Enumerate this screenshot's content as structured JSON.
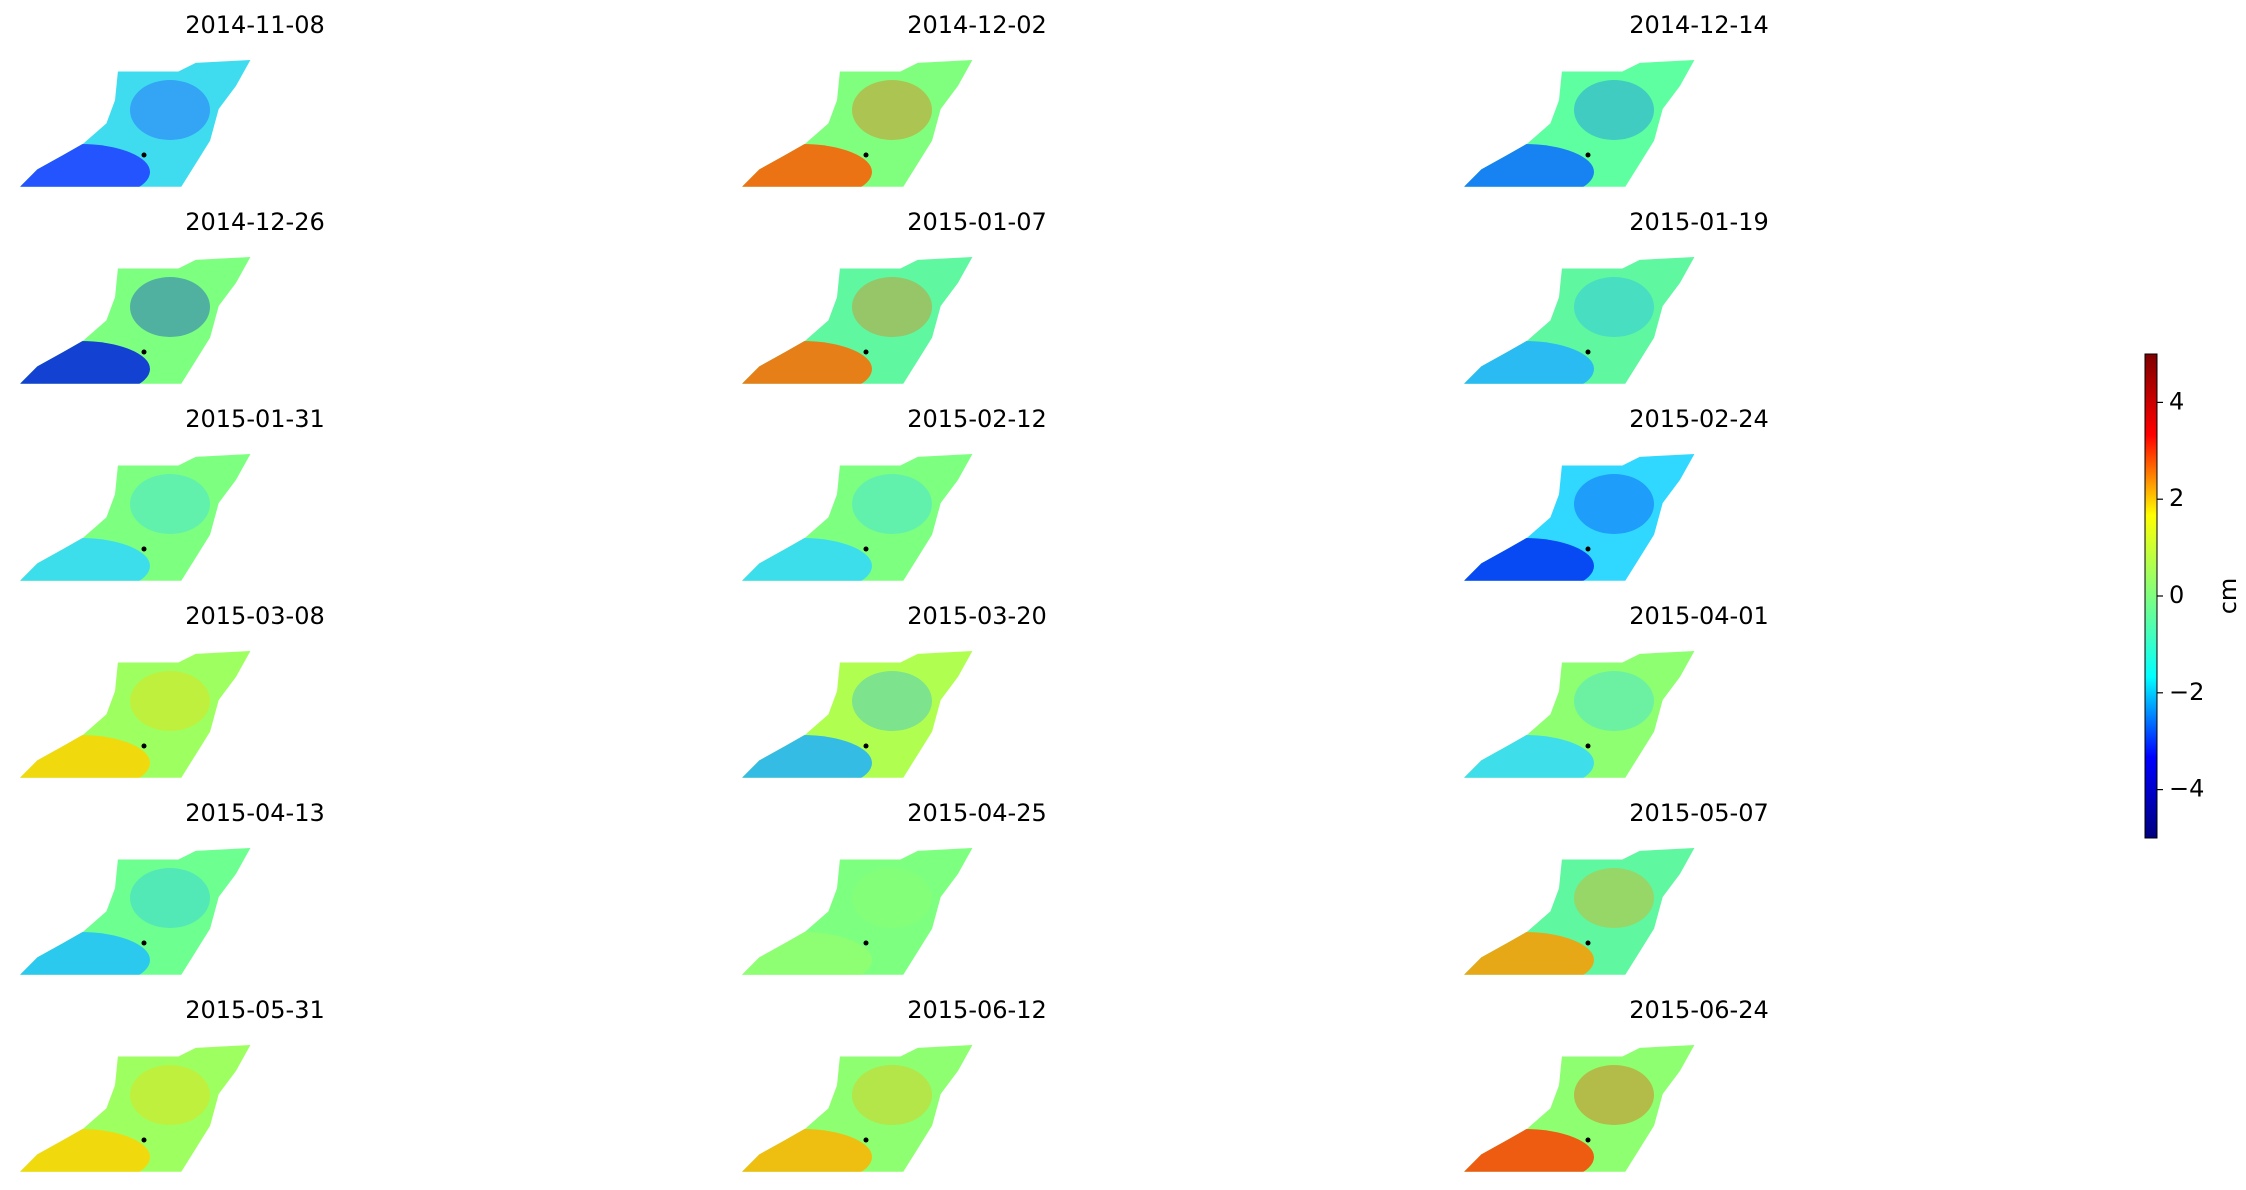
{
  "chart_data": {
    "type": "image-grid",
    "panels": [
      {
        "title": "2014-11-08",
        "colors": [
          "#3fdcf0",
          "#1f3cff"
        ]
      },
      {
        "title": "2014-12-02",
        "colors": [
          "#80ff7f",
          "#ff5a00"
        ]
      },
      {
        "title": "2014-12-14",
        "colors": [
          "#5effa0",
          "#0a6cff"
        ]
      },
      {
        "title": "2014-12-26",
        "colors": [
          "#7dff80",
          "#0020e0"
        ]
      },
      {
        "title": "2015-01-07",
        "colors": [
          "#5ff7a0",
          "#ff6a00"
        ]
      },
      {
        "title": "2015-01-19",
        "colors": [
          "#5ff7a0",
          "#20b0ff"
        ]
      },
      {
        "title": "2015-01-31",
        "colors": [
          "#7dff80",
          "#30d8ff"
        ]
      },
      {
        "title": "2015-02-12",
        "colors": [
          "#7dff80",
          "#30d8ff"
        ]
      },
      {
        "title": "2015-02-24",
        "colors": [
          "#30d8ff",
          "#0030f0"
        ]
      },
      {
        "title": "2015-03-08",
        "colors": [
          "#9dff60",
          "#ffd400"
        ]
      },
      {
        "title": "2015-03-20",
        "colors": [
          "#b0ff50",
          "#20b0ff"
        ]
      },
      {
        "title": "2015-04-01",
        "colors": [
          "#8dff70",
          "#30d8ff"
        ]
      },
      {
        "title": "2015-04-13",
        "colors": [
          "#6dff90",
          "#20c0ff"
        ]
      },
      {
        "title": "2015-04-25",
        "colors": [
          "#7dff80",
          "#90ff70"
        ]
      },
      {
        "title": "2015-05-07",
        "colors": [
          "#5ff7a0",
          "#ff9a00"
        ]
      },
      {
        "title": "2015-05-31",
        "colors": [
          "#9dff60",
          "#ffd400"
        ]
      },
      {
        "title": "2015-06-12",
        "colors": [
          "#8dff70",
          "#ffb400"
        ]
      },
      {
        "title": "2015-06-24",
        "colors": [
          "#8dff70",
          "#ff4000"
        ]
      }
    ],
    "colorbar": {
      "label": "cm",
      "lim": [
        -5,
        5
      ],
      "ticks": [
        {
          "value": -4,
          "label": "−4"
        },
        {
          "value": -2,
          "label": "−2"
        },
        0,
        2,
        4
      ],
      "colormap": [
        "#00007f",
        "#0000ff",
        "#00ffff",
        "#7fff7f",
        "#ffff00",
        "#ff0000",
        "#7f0000"
      ]
    }
  }
}
